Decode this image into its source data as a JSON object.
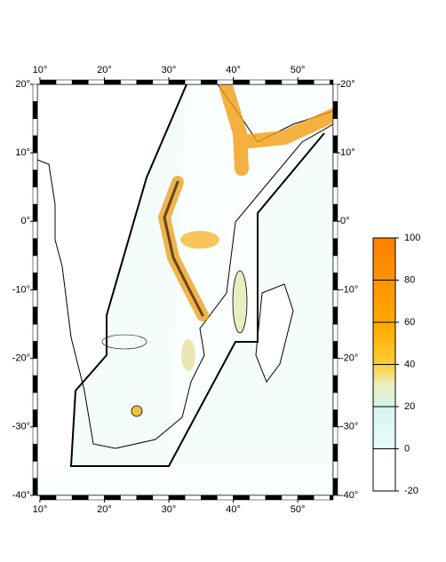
{
  "map": {
    "xlim": [
      9.6,
      55.5
    ],
    "ylim": [
      -40,
      20
    ],
    "xticks": [
      {
        "value": 10,
        "label": "10°"
      },
      {
        "value": 20,
        "label": "20°"
      },
      {
        "value": 30,
        "label": "30°"
      },
      {
        "value": 40,
        "label": "40°"
      },
      {
        "value": 50,
        "label": "50°"
      }
    ],
    "yticks": [
      {
        "value": 20,
        "label": "20°"
      },
      {
        "value": 10,
        "label": "10°"
      },
      {
        "value": 0,
        "label": "0°"
      },
      {
        "value": -10,
        "label": "-10°"
      },
      {
        "value": -20,
        "label": "-20°"
      },
      {
        "value": -30,
        "label": "-30°"
      },
      {
        "value": -40,
        "label": "-40°"
      }
    ]
  },
  "colorbar": {
    "lim": [
      -20,
      100
    ],
    "ticks": [
      -20,
      0,
      20,
      40,
      60,
      80,
      100
    ]
  }
}
